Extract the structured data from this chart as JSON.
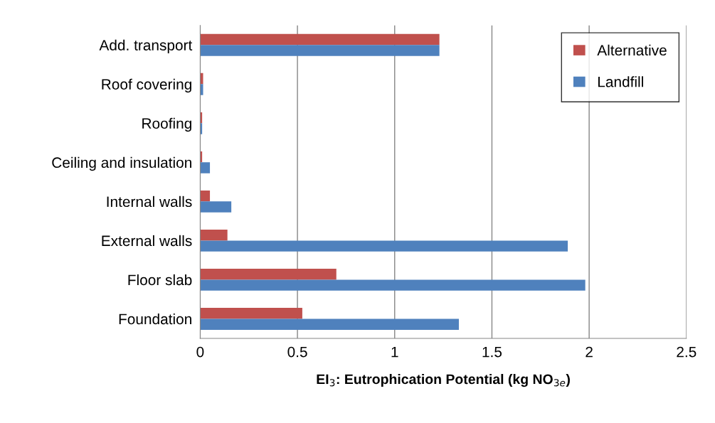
{
  "chart_data": {
    "type": "bar",
    "orientation": "horizontal",
    "xlabel": "EI$_{3}$: Eutrophication Potential (kg NO$_{3e}$)",
    "categories": [
      "Add. transport",
      "Roof covering",
      "Roofing",
      "Ceiling and insulation",
      "Internal walls",
      "External walls",
      "Floor slab",
      "Foundation"
    ],
    "series": [
      {
        "name": "Alternative",
        "color": "#c0504d",
        "values": [
          1.23,
          0.015,
          0.01,
          0.01,
          0.05,
          0.14,
          0.7,
          0.525
        ]
      },
      {
        "name": "Landfill",
        "color": "#4f81bd",
        "values": [
          1.23,
          0.015,
          0.01,
          0.05,
          0.16,
          1.89,
          1.98,
          1.33
        ]
      }
    ],
    "xlim": [
      0,
      2.5
    ],
    "xticks": [
      0,
      0.5,
      1,
      1.5,
      2,
      2.5
    ],
    "grid": "x",
    "legend": "top right"
  }
}
